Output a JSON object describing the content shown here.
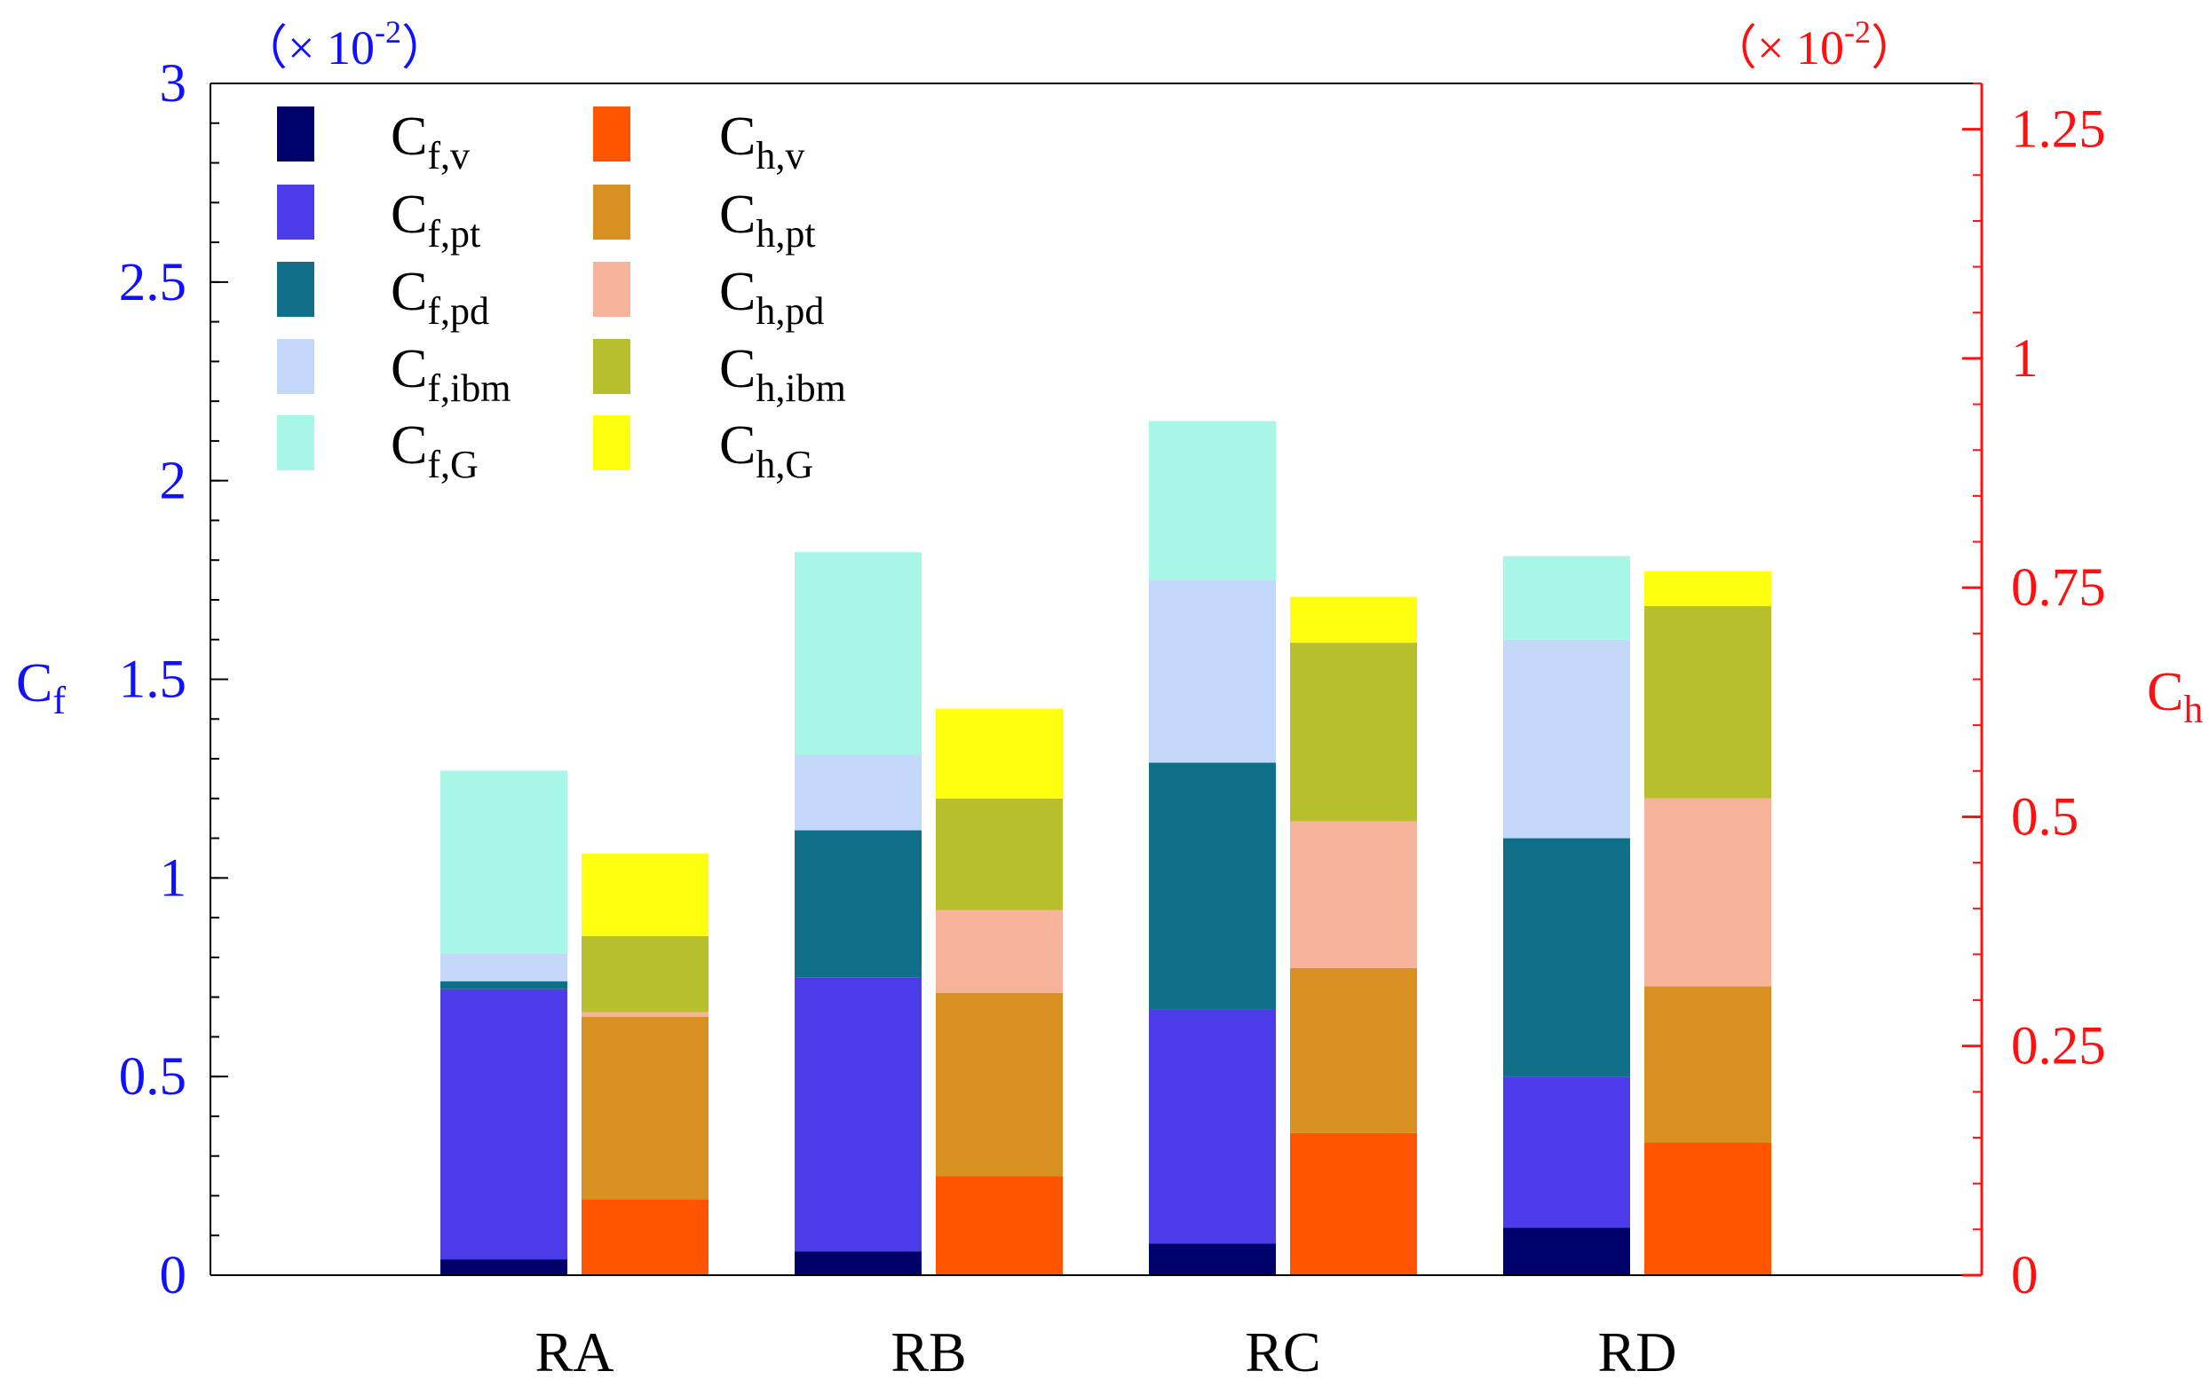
{
  "chart_data": {
    "type": "bar",
    "stacked": true,
    "categories": [
      "RA",
      "RB",
      "RC",
      "RD"
    ],
    "left_axis": {
      "label": "C",
      "label_sub": "f",
      "multiplier": "（× 10",
      "multiplier_exp": "-2",
      "multiplier_close": "）",
      "ylim": [
        0,
        3
      ],
      "ticks": [
        0,
        0.5,
        1,
        1.5,
        2,
        2.5,
        3
      ],
      "tick_labels": [
        "0",
        "0.5",
        "1",
        "1.5",
        "2",
        "2.5",
        "3"
      ],
      "color": "#1010ff"
    },
    "right_axis": {
      "label": "C",
      "label_sub": "h",
      "multiplier": "（× 10",
      "multiplier_exp": "-2",
      "multiplier_close": "）",
      "ylim": [
        0,
        1.3
      ],
      "ticks": [
        0,
        0.25,
        0.5,
        0.75,
        1,
        1.25
      ],
      "tick_labels": [
        "0",
        "0.25",
        "0.5",
        "0.75",
        "1",
        "1.25"
      ],
      "minor_step": 0.05,
      "color": "#ff1010"
    },
    "cf_series": [
      {
        "name": "C",
        "sub": "f,v",
        "color": "#00006b",
        "values": [
          0.04,
          0.06,
          0.08,
          0.12
        ]
      },
      {
        "name": "C",
        "sub": "f,pt",
        "color": "#4b3be8",
        "values": [
          0.68,
          0.69,
          0.59,
          0.38
        ]
      },
      {
        "name": "C",
        "sub": "f,pd",
        "color": "#10708a",
        "values": [
          0.02,
          0.37,
          0.62,
          0.6
        ]
      },
      {
        "name": "C",
        "sub": "f,ibm",
        "color": "#c4d8fa",
        "values": [
          0.07,
          0.19,
          0.46,
          0.5
        ]
      },
      {
        "name": "C",
        "sub": "f,G",
        "color": "#a8f6e6",
        "values": [
          0.46,
          0.51,
          0.4,
          0.21
        ]
      }
    ],
    "ch_series": [
      {
        "name": "C",
        "sub": "h,v",
        "color": "#ff5500",
        "values": [
          0.083,
          0.108,
          0.155,
          0.145
        ]
      },
      {
        "name": "C",
        "sub": "h,pt",
        "color": "#d89020",
        "values": [
          0.199,
          0.2,
          0.18,
          0.17
        ]
      },
      {
        "name": "C",
        "sub": "h,pd",
        "color": "#f8b49a",
        "values": [
          0.005,
          0.09,
          0.16,
          0.205
        ]
      },
      {
        "name": "C",
        "sub": "h,ibm",
        "color": "#b7bf2c",
        "values": [
          0.083,
          0.122,
          0.195,
          0.21
        ]
      },
      {
        "name": "C",
        "sub": "h,G",
        "color": "#ffff10",
        "values": [
          0.09,
          0.098,
          0.05,
          0.038
        ]
      }
    ]
  }
}
